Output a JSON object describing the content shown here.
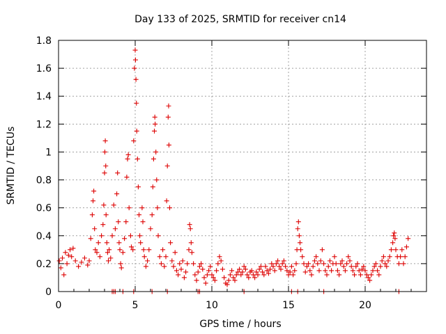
{
  "chart_data": {
    "type": "scatter",
    "title": "Day 133 of 2025, SRMTID for receiver cn14",
    "xlabel": "GPS time / hours",
    "ylabel": "SRMTID / TECUs",
    "xlim": [
      0,
      24
    ],
    "ylim": [
      0,
      1.8
    ],
    "xticks": [
      0,
      5,
      10,
      15,
      20
    ],
    "yticks": [
      0,
      0.2,
      0.4,
      0.6,
      0.8,
      1.0,
      1.2,
      1.4,
      1.6,
      1.8
    ],
    "xtick_labels": [
      "0",
      "5",
      "10",
      "15",
      "20"
    ],
    "ytick_labels": [
      "0",
      "0.2",
      "0.4",
      "0.6",
      "0.8",
      "1",
      "1.2",
      "1.4",
      "1.6",
      "1.8"
    ],
    "grid": true,
    "marker": "plus",
    "color": "#dd0000",
    "series": [
      {
        "name": "SRMTID",
        "points": [
          [
            0.05,
            0.22
          ],
          [
            0.15,
            0.17
          ],
          [
            0.25,
            0.24
          ],
          [
            0.35,
            0.12
          ],
          [
            0.45,
            0.28
          ],
          [
            0.55,
            0.2
          ],
          [
            0.65,
            0.26
          ],
          [
            0.75,
            0.3
          ],
          [
            0.85,
            0.25
          ],
          [
            0.95,
            0.31
          ],
          [
            1.1,
            0.22
          ],
          [
            1.3,
            0.18
          ],
          [
            1.5,
            0.21
          ],
          [
            1.7,
            0.24
          ],
          [
            1.9,
            0.19
          ],
          [
            2.0,
            0.22
          ],
          [
            2.1,
            0.38
          ],
          [
            2.2,
            0.55
          ],
          [
            2.25,
            0.65
          ],
          [
            2.3,
            0.72
          ],
          [
            2.35,
            0.45
          ],
          [
            2.4,
            0.3
          ],
          [
            2.5,
            0.28
          ],
          [
            2.6,
            0.35
          ],
          [
            2.7,
            0.25
          ],
          [
            2.8,
            0.4
          ],
          [
            2.9,
            0.48
          ],
          [
            2.95,
            0.62
          ],
          [
            3.0,
            0.85
          ],
          [
            3.02,
            1.0
          ],
          [
            3.05,
            1.08
          ],
          [
            3.08,
            0.9
          ],
          [
            3.1,
            0.55
          ],
          [
            3.15,
            0.35
          ],
          [
            3.2,
            0.28
          ],
          [
            3.25,
            0.22
          ],
          [
            3.3,
            0.3
          ],
          [
            3.4,
            0.24
          ],
          [
            3.5,
            0.4
          ],
          [
            3.6,
            0.62
          ],
          [
            3.7,
            0.45
          ],
          [
            3.8,
            0.7
          ],
          [
            3.85,
            0.85
          ],
          [
            3.9,
            0.5
          ],
          [
            3.95,
            0.35
          ],
          [
            4.0,
            0.3
          ],
          [
            4.05,
            0.2
          ],
          [
            4.1,
            0.17
          ],
          [
            4.2,
            0.28
          ],
          [
            4.3,
            0.38
          ],
          [
            4.4,
            0.5
          ],
          [
            4.45,
            0.82
          ],
          [
            4.5,
            0.95
          ],
          [
            4.55,
            0.98
          ],
          [
            4.6,
            0.6
          ],
          [
            4.7,
            0.4
          ],
          [
            4.75,
            0.32
          ],
          [
            4.85,
            0.3
          ],
          [
            4.9,
            1.08
          ],
          [
            4.95,
            1.6
          ],
          [
            5.0,
            1.73
          ],
          [
            5.02,
            1.66
          ],
          [
            5.05,
            1.52
          ],
          [
            5.08,
            1.35
          ],
          [
            5.1,
            1.15
          ],
          [
            5.15,
            0.95
          ],
          [
            5.2,
            0.75
          ],
          [
            5.25,
            0.55
          ],
          [
            5.3,
            0.4
          ],
          [
            5.35,
            0.35
          ],
          [
            5.45,
            0.6
          ],
          [
            5.5,
            0.5
          ],
          [
            5.55,
            0.3
          ],
          [
            5.6,
            0.25
          ],
          [
            5.7,
            0.18
          ],
          [
            5.8,
            0.22
          ],
          [
            5.9,
            0.3
          ],
          [
            6.0,
            0.45
          ],
          [
            6.1,
            0.55
          ],
          [
            6.15,
            0.75
          ],
          [
            6.2,
            0.95
          ],
          [
            6.25,
            1.15
          ],
          [
            6.28,
            1.25
          ],
          [
            6.3,
            1.2
          ],
          [
            6.35,
            1.0
          ],
          [
            6.4,
            0.8
          ],
          [
            6.45,
            0.6
          ],
          [
            6.5,
            0.4
          ],
          [
            6.6,
            0.25
          ],
          [
            6.7,
            0.2
          ],
          [
            6.8,
            0.3
          ],
          [
            6.9,
            0.18
          ],
          [
            7.0,
            0.25
          ],
          [
            7.05,
            0.65
          ],
          [
            7.1,
            0.9
          ],
          [
            7.15,
            1.25
          ],
          [
            7.18,
            1.33
          ],
          [
            7.2,
            1.05
          ],
          [
            7.25,
            0.6
          ],
          [
            7.3,
            0.35
          ],
          [
            7.4,
            0.22
          ],
          [
            7.5,
            0.18
          ],
          [
            7.6,
            0.28
          ],
          [
            7.7,
            0.15
          ],
          [
            7.8,
            0.12
          ],
          [
            7.9,
            0.2
          ],
          [
            8.0,
            0.16
          ],
          [
            8.1,
            0.22
          ],
          [
            8.2,
            0.1
          ],
          [
            8.3,
            0.14
          ],
          [
            8.4,
            0.2
          ],
          [
            8.5,
            0.3
          ],
          [
            8.55,
            0.48
          ],
          [
            8.6,
            0.45
          ],
          [
            8.65,
            0.35
          ],
          [
            8.7,
            0.28
          ],
          [
            8.8,
            0.2
          ],
          [
            8.9,
            0.12
          ],
          [
            9.0,
            0.08
          ],
          [
            9.1,
            0.14
          ],
          [
            9.2,
            0.18
          ],
          [
            9.3,
            0.2
          ],
          [
            9.4,
            0.16
          ],
          [
            9.5,
            0.1
          ],
          [
            9.6,
            0.06
          ],
          [
            9.7,
            0.12
          ],
          [
            9.8,
            0.15
          ],
          [
            9.9,
            0.18
          ],
          [
            10.0,
            0.12
          ],
          [
            10.1,
            0.1
          ],
          [
            10.2,
            0.08
          ],
          [
            10.3,
            0.15
          ],
          [
            10.4,
            0.2
          ],
          [
            10.5,
            0.25
          ],
          [
            10.6,
            0.22
          ],
          [
            10.7,
            0.16
          ],
          [
            10.8,
            0.1
          ],
          [
            10.9,
            0.06
          ],
          [
            11.0,
            0.05
          ],
          [
            11.1,
            0.08
          ],
          [
            11.2,
            0.12
          ],
          [
            11.3,
            0.15
          ],
          [
            11.4,
            0.1
          ],
          [
            11.5,
            0.08
          ],
          [
            11.6,
            0.12
          ],
          [
            11.7,
            0.14
          ],
          [
            11.8,
            0.16
          ],
          [
            11.9,
            0.12
          ],
          [
            12.0,
            0.14
          ],
          [
            12.1,
            0.18
          ],
          [
            12.2,
            0.16
          ],
          [
            12.3,
            0.12
          ],
          [
            12.4,
            0.1
          ],
          [
            12.5,
            0.14
          ],
          [
            12.6,
            0.15
          ],
          [
            12.7,
            0.12
          ],
          [
            12.8,
            0.1
          ],
          [
            12.9,
            0.14
          ],
          [
            13.0,
            0.12
          ],
          [
            13.1,
            0.16
          ],
          [
            13.2,
            0.18
          ],
          [
            13.3,
            0.14
          ],
          [
            13.4,
            0.12
          ],
          [
            13.5,
            0.18
          ],
          [
            13.6,
            0.15
          ],
          [
            13.7,
            0.13
          ],
          [
            13.8,
            0.16
          ],
          [
            13.9,
            0.2
          ],
          [
            14.0,
            0.18
          ],
          [
            14.1,
            0.15
          ],
          [
            14.2,
            0.2
          ],
          [
            14.3,
            0.22
          ],
          [
            14.4,
            0.18
          ],
          [
            14.5,
            0.16
          ],
          [
            14.6,
            0.2
          ],
          [
            14.7,
            0.22
          ],
          [
            14.8,
            0.18
          ],
          [
            14.9,
            0.15
          ],
          [
            15.0,
            0.12
          ],
          [
            15.1,
            0.14
          ],
          [
            15.2,
            0.18
          ],
          [
            15.3,
            0.12
          ],
          [
            15.4,
            0.15
          ],
          [
            15.5,
            0.2
          ],
          [
            15.55,
            0.3
          ],
          [
            15.6,
            0.45
          ],
          [
            15.65,
            0.5
          ],
          [
            15.7,
            0.4
          ],
          [
            15.75,
            0.35
          ],
          [
            15.8,
            0.3
          ],
          [
            15.9,
            0.25
          ],
          [
            16.0,
            0.2
          ],
          [
            16.1,
            0.14
          ],
          [
            16.2,
            0.18
          ],
          [
            16.3,
            0.2
          ],
          [
            16.4,
            0.15
          ],
          [
            16.5,
            0.12
          ],
          [
            16.6,
            0.18
          ],
          [
            16.7,
            0.22
          ],
          [
            16.8,
            0.25
          ],
          [
            16.9,
            0.2
          ],
          [
            17.0,
            0.15
          ],
          [
            17.1,
            0.22
          ],
          [
            17.2,
            0.3
          ],
          [
            17.3,
            0.2
          ],
          [
            17.4,
            0.15
          ],
          [
            17.5,
            0.12
          ],
          [
            17.6,
            0.18
          ],
          [
            17.7,
            0.22
          ],
          [
            17.8,
            0.15
          ],
          [
            17.9,
            0.2
          ],
          [
            18.0,
            0.25
          ],
          [
            18.1,
            0.2
          ],
          [
            18.2,
            0.15
          ],
          [
            18.3,
            0.12
          ],
          [
            18.4,
            0.2
          ],
          [
            18.5,
            0.22
          ],
          [
            18.6,
            0.18
          ],
          [
            18.7,
            0.15
          ],
          [
            18.8,
            0.2
          ],
          [
            18.9,
            0.25
          ],
          [
            19.0,
            0.22
          ],
          [
            19.1,
            0.18
          ],
          [
            19.2,
            0.15
          ],
          [
            19.3,
            0.12
          ],
          [
            19.4,
            0.18
          ],
          [
            19.5,
            0.2
          ],
          [
            19.6,
            0.15
          ],
          [
            19.7,
            0.12
          ],
          [
            19.8,
            0.16
          ],
          [
            19.9,
            0.18
          ],
          [
            20.0,
            0.15
          ],
          [
            20.1,
            0.12
          ],
          [
            20.2,
            0.1
          ],
          [
            20.3,
            0.08
          ],
          [
            20.4,
            0.12
          ],
          [
            20.5,
            0.15
          ],
          [
            20.6,
            0.18
          ],
          [
            20.7,
            0.2
          ],
          [
            20.8,
            0.15
          ],
          [
            20.9,
            0.12
          ],
          [
            21.0,
            0.18
          ],
          [
            21.1,
            0.22
          ],
          [
            21.2,
            0.25
          ],
          [
            21.3,
            0.2
          ],
          [
            21.4,
            0.18
          ],
          [
            21.5,
            0.22
          ],
          [
            21.6,
            0.25
          ],
          [
            21.7,
            0.3
          ],
          [
            21.8,
            0.35
          ],
          [
            21.85,
            0.4
          ],
          [
            21.9,
            0.42
          ],
          [
            21.95,
            0.38
          ],
          [
            22.0,
            0.3
          ],
          [
            22.1,
            0.25
          ],
          [
            22.2,
            0.2
          ],
          [
            22.3,
            0.25
          ],
          [
            22.4,
            0.3
          ],
          [
            22.5,
            0.2
          ],
          [
            22.6,
            0.25
          ],
          [
            22.7,
            0.32
          ],
          [
            22.8,
            0.38
          ]
        ]
      }
    ],
    "zero_points_x": [
      3.5,
      3.6,
      3.7,
      4.2,
      4.9,
      6.1,
      7.1,
      9.1,
      9.2,
      12.1,
      15.2,
      15.6,
      17.3,
      22.2
    ]
  }
}
